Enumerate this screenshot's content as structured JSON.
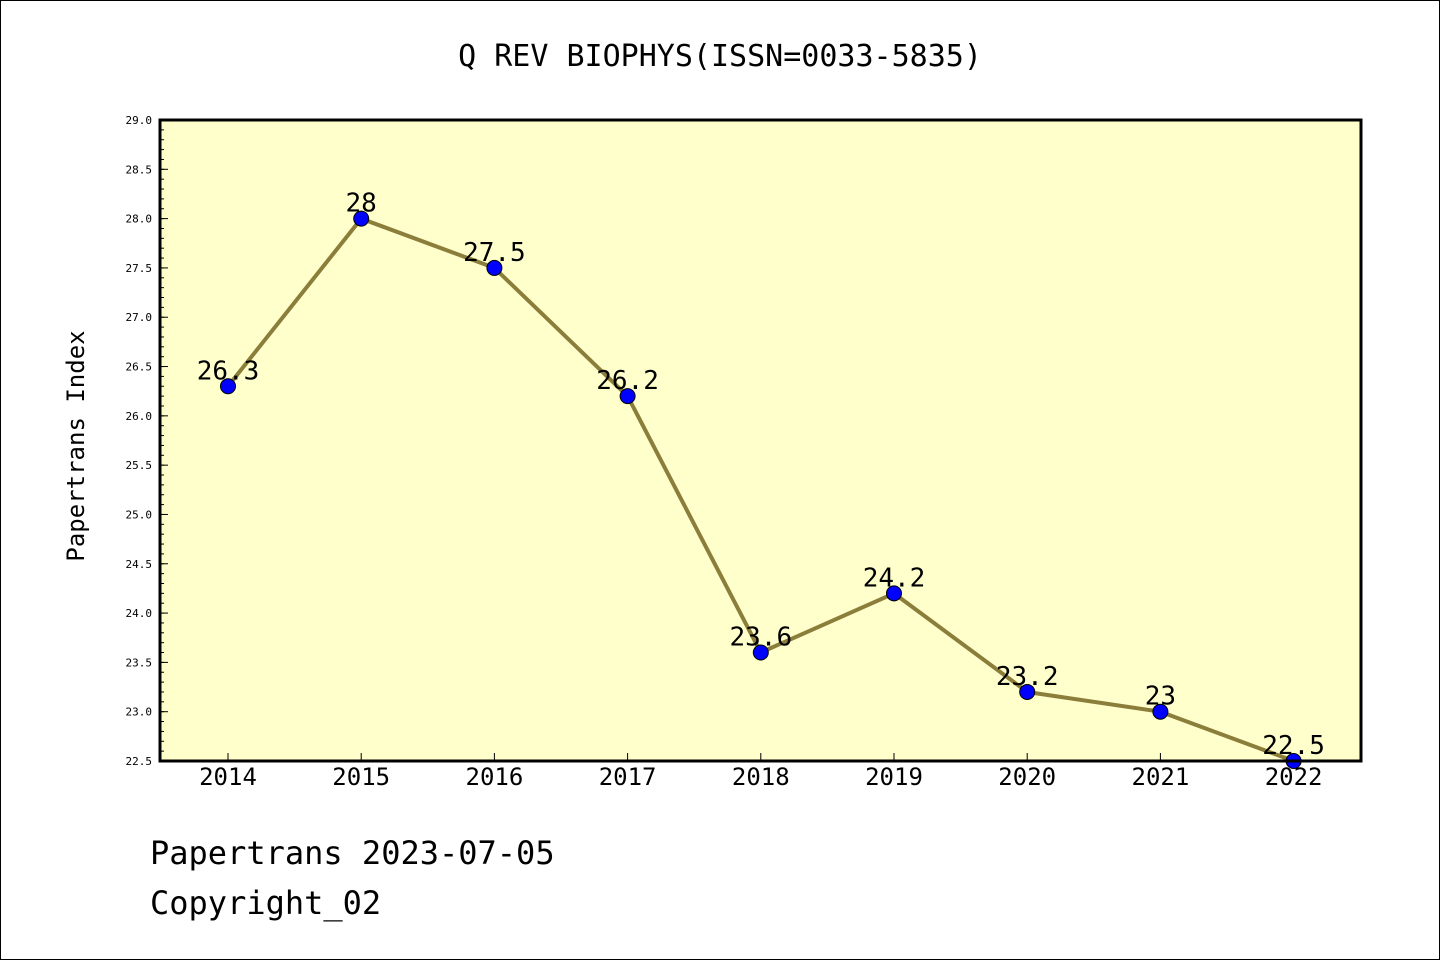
{
  "footer": {
    "line1": "Papertrans 2023-07-05",
    "line2": "Copyright_02"
  },
  "chart_data": {
    "type": "line",
    "title": "Q REV BIOPHYS(ISSN=0033-5835)",
    "xlabel": "",
    "ylabel": "Papertrans Index",
    "categories": [
      "2014",
      "2015",
      "2016",
      "2017",
      "2018",
      "2019",
      "2020",
      "2021",
      "2022"
    ],
    "series": [
      {
        "values": [
          26.3,
          28,
          27.5,
          26.2,
          23.6,
          24.2,
          23.2,
          23,
          22.5
        ],
        "labels": [
          "26.3",
          "28",
          "27.5",
          "26.2",
          "23.6",
          "24.2",
          "23.2",
          "23",
          "22.5"
        ]
      }
    ],
    "ylim": [
      22.5,
      29.0
    ],
    "yticks": [
      "22.5",
      "23.0",
      "23.5",
      "24.0",
      "24.5",
      "25.0",
      "25.5",
      "26.0",
      "26.5",
      "27.0",
      "27.5",
      "28.0",
      "28.5",
      "29.0"
    ],
    "grid": false,
    "legend": "none",
    "colors": {
      "plot_background": "#ffffcc",
      "line": "#8b7d3a",
      "marker": "#0000ff",
      "marker_edge": "#000000"
    }
  }
}
